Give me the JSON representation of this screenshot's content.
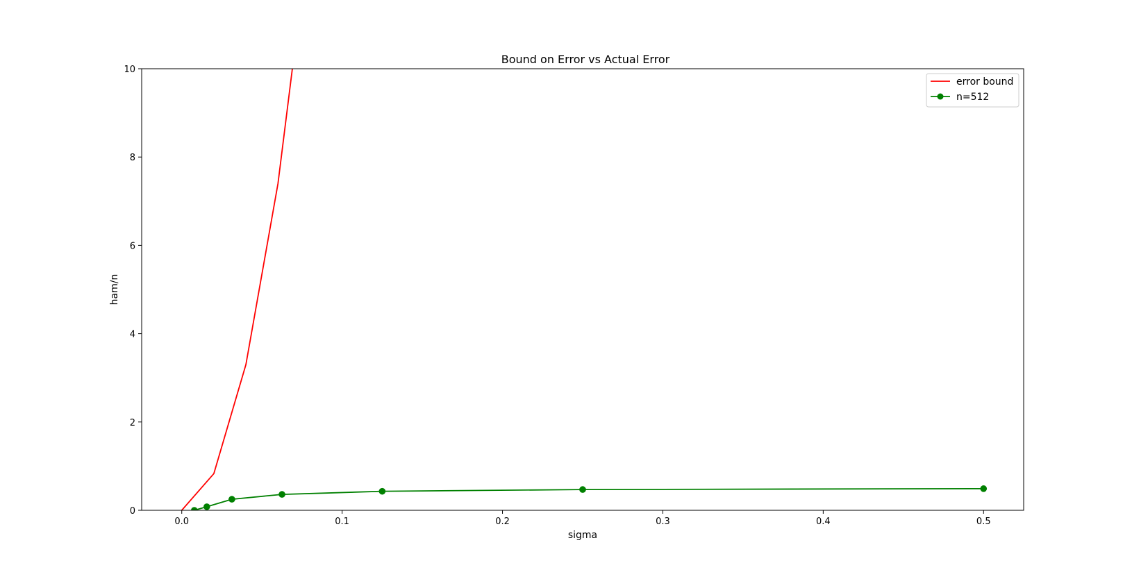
{
  "chart_data": {
    "type": "line",
    "title": "Bound on Error vs Actual Error",
    "xlabel": "sigma",
    "ylabel": "ham/n",
    "xlim": [
      -0.025,
      0.525
    ],
    "ylim": [
      0,
      10
    ],
    "xticks": [
      "0.0",
      "0.1",
      "0.2",
      "0.3",
      "0.4",
      "0.5"
    ],
    "yticks": [
      "0",
      "2",
      "4",
      "6",
      "8",
      "10"
    ],
    "grid": false,
    "legend_position": "top-right",
    "series": [
      {
        "name": "error bound",
        "color": "#ff0000",
        "marker": "none",
        "x": [
          0.0,
          0.02,
          0.04,
          0.06,
          0.08
        ],
        "y": [
          0.0,
          0.83,
          3.3,
          7.4,
          13.2
        ]
      },
      {
        "name": "n=512",
        "color": "#008000",
        "marker": "circle",
        "x": [
          0.0078125,
          0.015625,
          0.03125,
          0.0625,
          0.125,
          0.25,
          0.5
        ],
        "y": [
          0.0,
          0.08,
          0.25,
          0.36,
          0.43,
          0.47,
          0.49
        ]
      }
    ]
  }
}
